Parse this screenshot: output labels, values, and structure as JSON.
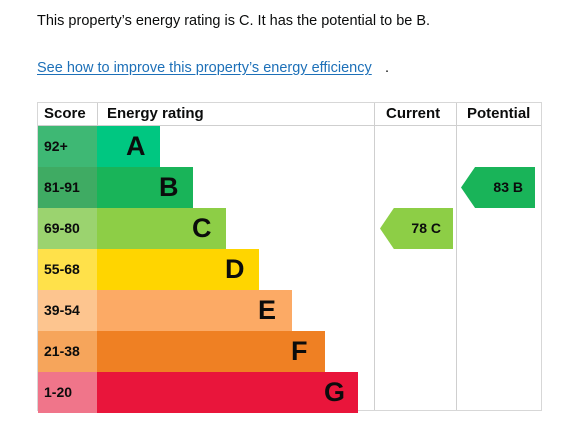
{
  "intro_text": "This property’s energy rating is C. It has the potential to be B.",
  "link_text": "See how to improve this property’s energy efficiency",
  "link_suffix": ".",
  "table": {
    "headers": {
      "score": "Score",
      "energy": "Energy rating",
      "current": "Current",
      "potential": "Potential"
    },
    "bands": [
      {
        "score": "92+",
        "letter": "A",
        "score_bg": "#3eb874",
        "bar_color": "#00c781"
      },
      {
        "score": "81-91",
        "letter": "B",
        "score_bg": "#3fab63",
        "bar_color": "#19b459"
      },
      {
        "score": "69-80",
        "letter": "C",
        "score_bg": "#9bd36f",
        "bar_color": "#8dce46"
      },
      {
        "score": "55-68",
        "letter": "D",
        "score_bg": "#ffe14a",
        "bar_color": "#ffd500"
      },
      {
        "score": "39-54",
        "letter": "E",
        "score_bg": "#fdc58f",
        "bar_color": "#fcaa65"
      },
      {
        "score": "21-38",
        "letter": "F",
        "score_bg": "#f6a55b",
        "bar_color": "#ef8023"
      },
      {
        "score": "1-20",
        "letter": "G",
        "score_bg": "#f0758a",
        "bar_color": "#e9153b"
      }
    ],
    "current": {
      "label": "78 C",
      "color": "#8dce46"
    },
    "potential": {
      "label": "83 B",
      "color": "#19b459"
    }
  }
}
